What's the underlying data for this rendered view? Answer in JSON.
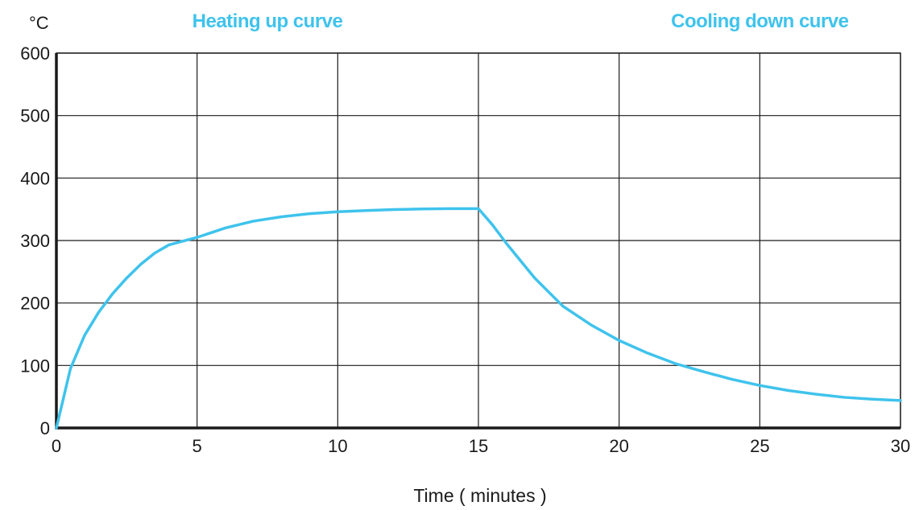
{
  "chart_data": {
    "type": "line",
    "title": "",
    "ylabel": "°C",
    "xlabel": "Time ( minutes )",
    "xlim": [
      0,
      30
    ],
    "ylim": [
      0,
      600
    ],
    "x_ticks": [
      "0",
      "5",
      "10",
      "15",
      "20",
      "25",
      "30"
    ],
    "y_ticks": [
      "0",
      "100",
      "200",
      "300",
      "400",
      "500",
      "600"
    ],
    "grid": true,
    "color": "#3fc3ec",
    "phase_labels": [
      {
        "text": "Heating up curve",
        "center_x": 7.5
      },
      {
        "text": "Cooling down curve",
        "center_x": 25
      }
    ],
    "series": [
      {
        "x": [
          0,
          0.5,
          1,
          1.5,
          2,
          2.5,
          3,
          3.5,
          4,
          5,
          6,
          7,
          8,
          9,
          10,
          11,
          12,
          13,
          14,
          15,
          15.5,
          16,
          17,
          18,
          19,
          20,
          21,
          22,
          23,
          24,
          25,
          26,
          27,
          28,
          29,
          30
        ],
        "y": [
          0,
          95,
          148,
          185,
          215,
          240,
          262,
          280,
          293,
          305,
          320,
          331,
          338,
          343,
          346,
          348,
          349.5,
          350.5,
          351,
          351,
          325,
          295,
          240,
          195,
          165,
          140,
          120,
          103,
          90,
          78,
          68,
          60,
          54,
          49,
          46,
          44
        ]
      }
    ]
  }
}
